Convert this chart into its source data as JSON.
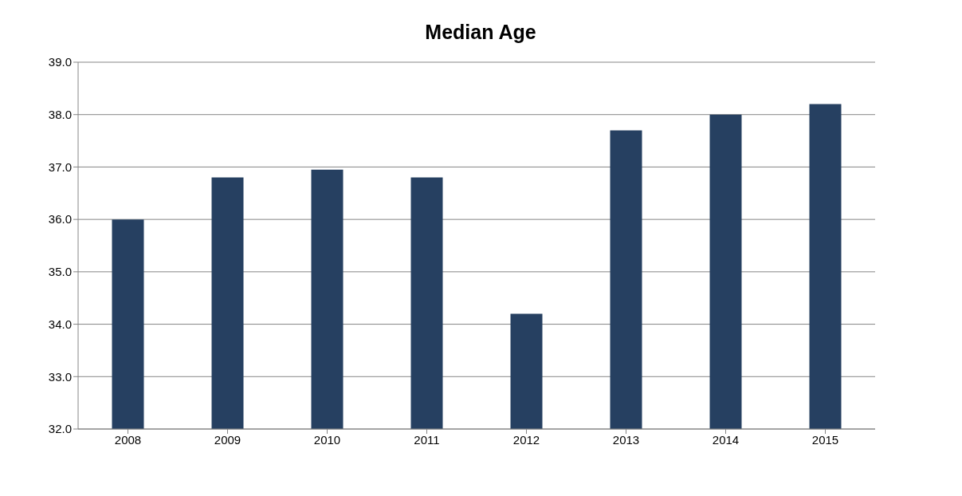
{
  "chart_data": {
    "type": "bar",
    "title": "Median Age",
    "categories": [
      "2008",
      "2009",
      "2010",
      "2011",
      "2012",
      "2013",
      "2014",
      "2015"
    ],
    "values": [
      36.0,
      36.8,
      36.95,
      36.8,
      34.2,
      37.7,
      38.0,
      38.2
    ],
    "color": "#264061",
    "ylim": [
      32,
      39
    ],
    "yticks": [
      {
        "value": 32,
        "label": "32.0"
      },
      {
        "value": 33,
        "label": "33.0"
      },
      {
        "value": 34,
        "label": "34.0"
      },
      {
        "value": 35,
        "label": "35.0"
      },
      {
        "value": 36,
        "label": "36.0"
      },
      {
        "value": 37,
        "label": "37.0"
      },
      {
        "value": 38,
        "label": "38.0"
      },
      {
        "value": 39,
        "label": "39.0"
      }
    ],
    "grid": "y",
    "legend": false
  }
}
